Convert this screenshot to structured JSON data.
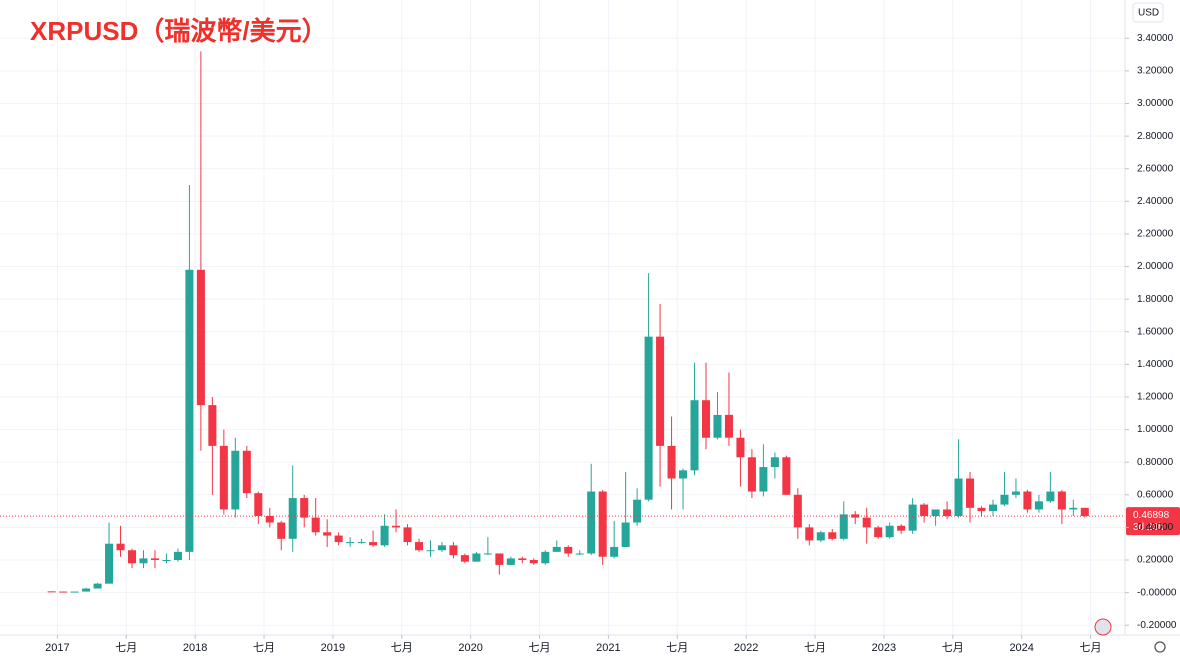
{
  "chart_data": {
    "type": "candlestick",
    "title": "XRPUSD（瑞波幣/美元）",
    "currency": "USD",
    "x": [
      "2016-12",
      "2017-01",
      "2017-02",
      "2017-03",
      "2017-04",
      "2017-05",
      "2017-06",
      "2017-07",
      "2017-08",
      "2017-09",
      "2017-10",
      "2017-11",
      "2017-12",
      "2018-01",
      "2018-02",
      "2018-03",
      "2018-04",
      "2018-05",
      "2018-06",
      "2018-07",
      "2018-08",
      "2018-09",
      "2018-10",
      "2018-11",
      "2018-12",
      "2019-01",
      "2019-02",
      "2019-03",
      "2019-04",
      "2019-05",
      "2019-06",
      "2019-07",
      "2019-08",
      "2019-09",
      "2019-10",
      "2019-11",
      "2019-12",
      "2020-01",
      "2020-02",
      "2020-03",
      "2020-04",
      "2020-05",
      "2020-06",
      "2020-07",
      "2020-08",
      "2020-09",
      "2020-10",
      "2020-11",
      "2020-12",
      "2021-01",
      "2021-02",
      "2021-03",
      "2021-04",
      "2021-05",
      "2021-06",
      "2021-07",
      "2021-08",
      "2021-09",
      "2021-10",
      "2021-11",
      "2021-12",
      "2022-01",
      "2022-02",
      "2022-03",
      "2022-04",
      "2022-05",
      "2022-06",
      "2022-07",
      "2022-08",
      "2022-09",
      "2022-10",
      "2022-11",
      "2022-12",
      "2023-01",
      "2023-02",
      "2023-03",
      "2023-04",
      "2023-05",
      "2023-06",
      "2023-07",
      "2023-08",
      "2023-09",
      "2023-10",
      "2023-11",
      "2023-12",
      "2024-01",
      "2024-02",
      "2024-03",
      "2024-04",
      "2024-05",
      "2024-06"
    ],
    "open": [
      0.0077,
      0.0065,
      0.0063,
      0.0064,
      0.025,
      0.055,
      0.3,
      0.26,
      0.18,
      0.21,
      0.2,
      0.2,
      0.25,
      1.98,
      1.15,
      0.9,
      0.51,
      0.87,
      0.61,
      0.47,
      0.43,
      0.33,
      0.58,
      0.46,
      0.37,
      0.35,
      0.31,
      0.31,
      0.31,
      0.29,
      0.41,
      0.4,
      0.31,
      0.26,
      0.26,
      0.29,
      0.23,
      0.19,
      0.24,
      0.24,
      0.17,
      0.21,
      0.2,
      0.18,
      0.25,
      0.28,
      0.24,
      0.24,
      0.62,
      0.22,
      0.28,
      0.43,
      0.57,
      1.57,
      0.9,
      0.7,
      0.75,
      1.18,
      0.95,
      1.09,
      0.95,
      0.83,
      0.62,
      0.77,
      0.83,
      0.6,
      0.4,
      0.32,
      0.37,
      0.33,
      0.48,
      0.46,
      0.4,
      0.34,
      0.41,
      0.38,
      0.54,
      0.47,
      0.51,
      0.47,
      0.7,
      0.52,
      0.5,
      0.54,
      0.6,
      0.62,
      0.51,
      0.56,
      0.62,
      0.51,
      0.52
    ],
    "high": [
      0.0078,
      0.007,
      0.007,
      0.03,
      0.06,
      0.43,
      0.41,
      0.27,
      0.26,
      0.26,
      0.24,
      0.27,
      2.5,
      3.32,
      1.2,
      1.0,
      0.95,
      0.9,
      0.62,
      0.52,
      0.44,
      0.78,
      0.6,
      0.58,
      0.45,
      0.37,
      0.34,
      0.33,
      0.38,
      0.48,
      0.51,
      0.42,
      0.33,
      0.32,
      0.31,
      0.31,
      0.24,
      0.25,
      0.34,
      0.24,
      0.22,
      0.22,
      0.21,
      0.26,
      0.32,
      0.29,
      0.26,
      0.79,
      0.63,
      0.44,
      0.74,
      0.64,
      1.96,
      1.77,
      1.08,
      0.76,
      1.41,
      1.41,
      1.23,
      1.35,
      1.0,
      0.88,
      0.91,
      0.86,
      0.84,
      0.64,
      0.42,
      0.38,
      0.39,
      0.56,
      0.5,
      0.52,
      0.41,
      0.43,
      0.42,
      0.58,
      0.55,
      0.49,
      0.56,
      0.94,
      0.74,
      0.53,
      0.57,
      0.74,
      0.7,
      0.63,
      0.6,
      0.74,
      0.63,
      0.57,
      0.52
    ],
    "low": [
      0.006,
      0.006,
      0.006,
      0.0062,
      0.025,
      0.055,
      0.22,
      0.15,
      0.15,
      0.15,
      0.18,
      0.19,
      0.2,
      0.87,
      0.6,
      0.48,
      0.46,
      0.58,
      0.42,
      0.4,
      0.26,
      0.25,
      0.4,
      0.35,
      0.28,
      0.29,
      0.28,
      0.3,
      0.28,
      0.28,
      0.37,
      0.29,
      0.25,
      0.22,
      0.25,
      0.21,
      0.18,
      0.19,
      0.23,
      0.11,
      0.17,
      0.18,
      0.17,
      0.17,
      0.25,
      0.22,
      0.23,
      0.23,
      0.17,
      0.21,
      0.28,
      0.41,
      0.56,
      0.65,
      0.51,
      0.51,
      0.72,
      0.88,
      0.94,
      0.9,
      0.65,
      0.58,
      0.59,
      0.7,
      0.6,
      0.33,
      0.29,
      0.31,
      0.32,
      0.32,
      0.42,
      0.3,
      0.33,
      0.33,
      0.36,
      0.36,
      0.43,
      0.41,
      0.45,
      0.46,
      0.43,
      0.47,
      0.47,
      0.53,
      0.58,
      0.49,
      0.49,
      0.55,
      0.42,
      0.47,
      0.46
    ],
    "close": [
      0.0065,
      0.0063,
      0.0064,
      0.025,
      0.055,
      0.3,
      0.26,
      0.18,
      0.21,
      0.2,
      0.2,
      0.25,
      1.98,
      1.15,
      0.9,
      0.51,
      0.87,
      0.61,
      0.47,
      0.43,
      0.33,
      0.58,
      0.46,
      0.37,
      0.35,
      0.31,
      0.31,
      0.31,
      0.29,
      0.41,
      0.4,
      0.31,
      0.26,
      0.26,
      0.29,
      0.23,
      0.19,
      0.24,
      0.24,
      0.17,
      0.21,
      0.2,
      0.18,
      0.25,
      0.28,
      0.24,
      0.24,
      0.62,
      0.22,
      0.28,
      0.43,
      0.57,
      1.57,
      0.9,
      0.7,
      0.75,
      1.18,
      0.95,
      1.09,
      0.95,
      0.83,
      0.62,
      0.77,
      0.83,
      0.6,
      0.4,
      0.32,
      0.37,
      0.33,
      0.48,
      0.46,
      0.4,
      0.34,
      0.41,
      0.38,
      0.54,
      0.47,
      0.51,
      0.47,
      0.7,
      0.52,
      0.5,
      0.54,
      0.6,
      0.62,
      0.51,
      0.56,
      0.62,
      0.51,
      0.52,
      0.47
    ],
    "up_color": "#26a69a",
    "down_color": "#f23645",
    "xlim": [
      "2016-08",
      "2024-10"
    ],
    "xticks": [
      {
        "value": "2017-01",
        "label": "2017"
      },
      {
        "value": "2017-07",
        "label": "七月"
      },
      {
        "value": "2018-01",
        "label": "2018"
      },
      {
        "value": "2018-07",
        "label": "七月"
      },
      {
        "value": "2019-01",
        "label": "2019"
      },
      {
        "value": "2019-07",
        "label": "七月"
      },
      {
        "value": "2020-01",
        "label": "2020"
      },
      {
        "value": "2020-07",
        "label": "七月"
      },
      {
        "value": "2021-01",
        "label": "2021"
      },
      {
        "value": "2021-07",
        "label": "七月"
      },
      {
        "value": "2022-01",
        "label": "2022"
      },
      {
        "value": "2022-07",
        "label": "七月"
      },
      {
        "value": "2023-01",
        "label": "2023"
      },
      {
        "value": "2023-07",
        "label": "七月"
      },
      {
        "value": "2024-01",
        "label": "2024"
      },
      {
        "value": "2024-07",
        "label": "七月"
      }
    ],
    "ylim": [
      -0.26,
      3.5
    ],
    "yticks": [
      {
        "value": -0.2,
        "label": "-0.20000"
      },
      {
        "value": 0,
        "label": "-0.00000"
      },
      {
        "value": 0.2,
        "label": "0.20000"
      },
      {
        "value": 0.4,
        "label": "0.40000"
      },
      {
        "value": 0.6,
        "label": "0.60000"
      },
      {
        "value": 0.8,
        "label": "0.80000"
      },
      {
        "value": 1.0,
        "label": "1.00000"
      },
      {
        "value": 1.2,
        "label": "1.20000"
      },
      {
        "value": 1.4,
        "label": "1.40000"
      },
      {
        "value": 1.6,
        "label": "1.60000"
      },
      {
        "value": 1.8,
        "label": "1.80000"
      },
      {
        "value": 2.0,
        "label": "2.00000"
      },
      {
        "value": 2.2,
        "label": "2.20000"
      },
      {
        "value": 2.4,
        "label": "2.40000"
      },
      {
        "value": 2.6,
        "label": "2.60000"
      },
      {
        "value": 2.8,
        "label": "2.80000"
      },
      {
        "value": 3.0,
        "label": "3.00000"
      },
      {
        "value": 3.2,
        "label": "3.20000"
      },
      {
        "value": 3.4,
        "label": "3.40000"
      }
    ],
    "grid": true,
    "last_price": 0.46898,
    "countdown": "3d 23h"
  }
}
